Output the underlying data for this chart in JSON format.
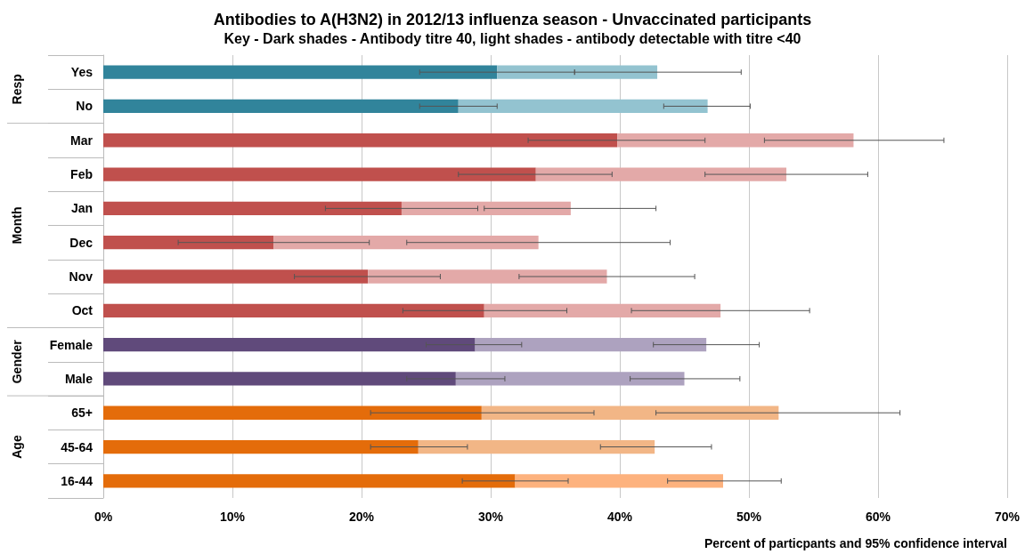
{
  "chart_data": {
    "type": "bar",
    "orientation": "horizontal",
    "stacked": true,
    "title": "Antibodies to A(H3N2) in 2012/13 influenza season - Unvaccinated participants",
    "subtitle": "Key - Dark shades - Antibody titre 40, light shades - antibody detectable with titre <40",
    "xlabel": "Percent of particpants and 95% confidence interval",
    "categories": [
      "Yes",
      "No",
      "Mar",
      "Feb",
      "Jan",
      "Dec",
      "Nov",
      "Oct",
      "Female",
      "Male",
      "65+",
      "45-64",
      "16-44"
    ],
    "annotations": [
      "Resp",
      "Month",
      "Gender",
      "Age"
    ],
    "series": [
      {
        "colors": [
          "#31849b",
          "#31849b",
          "#c0504d",
          "#c0504d",
          "#c0504d",
          "#c0504d",
          "#c0504d",
          "#c0504d",
          "#604a7b",
          "#604a7b",
          "#e46c0a",
          "#e46c0a",
          "#e46c0a"
        ],
        "values": [
          30.5,
          27.5,
          39.8,
          33.5,
          23.1,
          13.2,
          20.5,
          29.5,
          28.8,
          27.3,
          29.3,
          24.4,
          31.9
        ],
        "errors": [
          [
            24.5,
            36.5
          ],
          [
            24.5,
            30.5
          ],
          [
            32.9,
            46.6
          ],
          [
            27.5,
            39.4
          ],
          [
            17.2,
            29.0
          ],
          [
            5.8,
            20.6
          ],
          [
            14.8,
            26.1
          ],
          [
            23.2,
            35.9
          ],
          [
            25.0,
            32.4
          ],
          [
            23.5,
            31.1
          ],
          [
            20.7,
            38.0
          ],
          [
            20.7,
            28.2
          ],
          [
            27.8,
            36.0
          ]
        ]
      },
      {
        "colors": [
          "#93c3d0",
          "#93c3d0",
          "#e3a9a8",
          "#e3a9a8",
          "#e3a9a8",
          "#e3a9a8",
          "#e3a9a8",
          "#e3a9a8",
          "#ada2bf",
          "#ada2bf",
          "#f2b686",
          "#f2b686",
          "#fdb27e"
        ],
        "values": [
          12.4,
          19.3,
          18.3,
          19.4,
          13.1,
          20.5,
          18.5,
          18.3,
          17.9,
          17.7,
          23.0,
          18.3,
          16.1
        ],
        "errors": [
          [
            36.5,
            49.4
          ],
          [
            43.4,
            50.1
          ],
          [
            51.2,
            65.1
          ],
          [
            46.6,
            59.2
          ],
          [
            29.5,
            42.8
          ],
          [
            23.5,
            43.9
          ],
          [
            32.2,
            45.8
          ],
          [
            40.9,
            54.7
          ],
          [
            42.6,
            50.8
          ],
          [
            40.8,
            49.3
          ],
          [
            42.8,
            61.7
          ],
          [
            38.5,
            47.1
          ],
          [
            43.7,
            52.5
          ]
        ]
      }
    ],
    "xlim": [
      0,
      70
    ],
    "xticks": [
      {
        "value": 0,
        "label": "0%"
      },
      {
        "value": 10,
        "label": "10%"
      },
      {
        "value": 20,
        "label": "20%"
      },
      {
        "value": 30,
        "label": "30%"
      },
      {
        "value": 40,
        "label": "40%"
      },
      {
        "value": 50,
        "label": "50%"
      },
      {
        "value": 60,
        "label": "60%"
      },
      {
        "value": 70,
        "label": "70%"
      }
    ],
    "grid": "x"
  }
}
